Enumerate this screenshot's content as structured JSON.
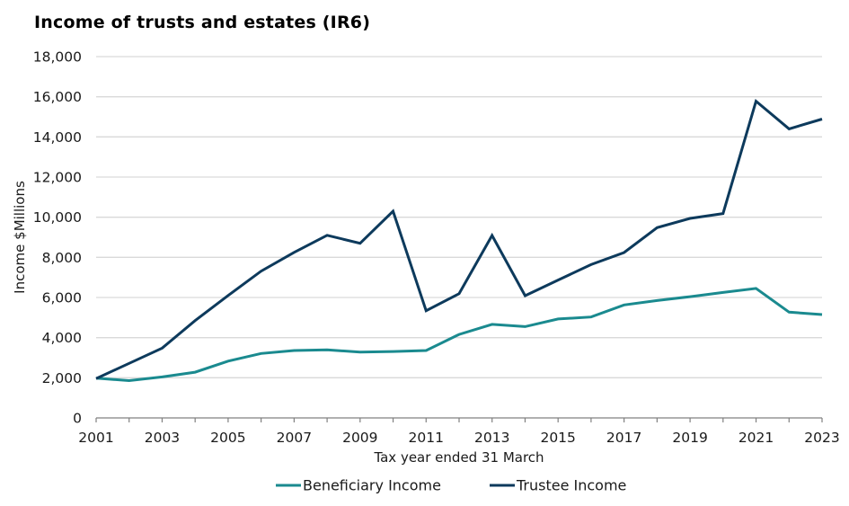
{
  "chart_data": {
    "type": "line",
    "title": "Income of trusts and estates (IR6)",
    "xlabel": "Tax year ended 31 March",
    "ylabel": "Income $Millions",
    "ylim": [
      0,
      18000
    ],
    "y_ticks": [
      0,
      2000,
      4000,
      6000,
      8000,
      10000,
      12000,
      14000,
      16000,
      18000
    ],
    "y_tick_labels": [
      "0",
      "2,000",
      "4,000",
      "6,000",
      "8,000",
      "10,000",
      "12,000",
      "14,000",
      "16,000",
      "18,000"
    ],
    "x": [
      2001,
      2002,
      2003,
      2004,
      2005,
      2006,
      2007,
      2008,
      2009,
      2010,
      2011,
      2012,
      2013,
      2014,
      2015,
      2016,
      2017,
      2018,
      2019,
      2020,
      2021,
      2022,
      2023
    ],
    "x_tick_labels": [
      "2001",
      "2003",
      "2005",
      "2007",
      "2009",
      "2011",
      "2013",
      "2015",
      "2017",
      "2019",
      "2021",
      "2023"
    ],
    "grid": "horizontal",
    "legend_position": "bottom",
    "series": [
      {
        "name": "Beneficiary Income",
        "color": "#1a8a8f",
        "values": [
          1980,
          1860,
          2040,
          2280,
          2830,
          3210,
          3360,
          3390,
          3280,
          3310,
          3360,
          4160,
          4660,
          4550,
          4930,
          5030,
          5630,
          5850,
          6040,
          6250,
          6450,
          5270,
          5150
        ]
      },
      {
        "name": "Trustee Income",
        "color": "#0d3a5c",
        "values": [
          1960,
          2720,
          3480,
          4850,
          6100,
          7310,
          8250,
          9100,
          8700,
          10300,
          5340,
          6190,
          9090,
          6090,
          6870,
          7640,
          8240,
          9480,
          9940,
          10180,
          15780,
          14400,
          14890
        ]
      }
    ]
  }
}
